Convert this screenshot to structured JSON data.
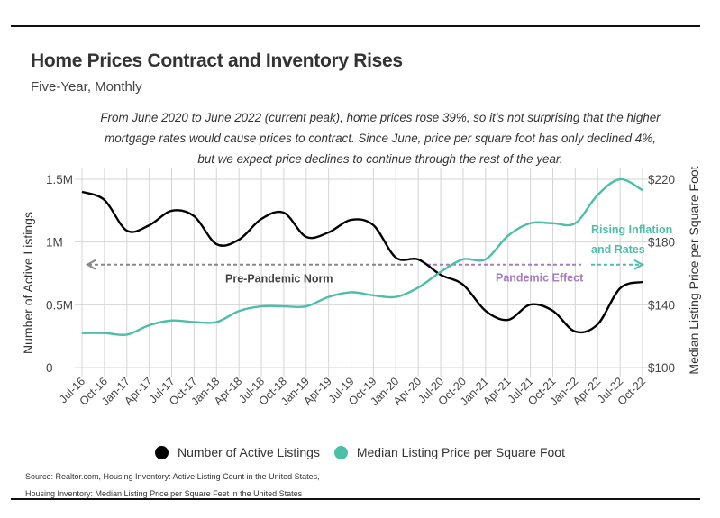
{
  "header": {
    "title": "Home Prices Contract and Inventory Rises",
    "subtitle": "Five-Year, Monthly",
    "description": "From June 2020 to June 2022 (current peak), home prices rose 39%, so it’s not surprising that the higher mortgage rates would cause prices to contract. Since June, price per square foot has only declined 4%, but we expect price declines to continue through the rest of the year."
  },
  "colors": {
    "listings": "#000000",
    "price": "#4dbfa8",
    "pre_pandemic": "#888888",
    "pandemic": "#a57dc1",
    "rising": "#4dbfa8",
    "grid": "#d4d4d4"
  },
  "chart_data": {
    "type": "line",
    "title": "Home Prices Contract and Inventory Rises",
    "subtitle": "Five-Year, Monthly",
    "xlabel": "",
    "ylabel_left": "Number of Active Listings",
    "ylabel_right": "Median Listing Price per Square Foot",
    "y_left": {
      "range": [
        0,
        1500000
      ],
      "ticks": [
        0,
        500000,
        1000000,
        1500000
      ],
      "tick_labels": [
        "0",
        "0.5M",
        "1M",
        "1.5M"
      ]
    },
    "y_right": {
      "range": [
        100,
        220
      ],
      "ticks": [
        100,
        140,
        180,
        220
      ],
      "tick_labels": [
        "$100",
        "$140",
        "$180",
        "$220"
      ]
    },
    "grid": true,
    "legend_position": "bottom",
    "x_tick_labels": [
      "Jul-16",
      "Oct-16",
      "Jan-17",
      "Apr-17",
      "Jul-17",
      "Oct-17",
      "Jan-18",
      "Apr-18",
      "Jul-18",
      "Oct-18",
      "Jan-19",
      "Apr-19",
      "Jul-19",
      "Oct-19",
      "Jan-20",
      "Apr-20",
      "Jul-20",
      "Oct-20",
      "Jan-21",
      "Apr-21",
      "Jul-21",
      "Oct-21",
      "Jan-22",
      "Apr-22",
      "Jul-22",
      "Oct-22"
    ],
    "x": [
      "Jul-16",
      "Oct-16",
      "Jan-17",
      "Apr-17",
      "Jul-17",
      "Oct-17",
      "Jan-18",
      "Apr-18",
      "Jul-18",
      "Oct-18",
      "Jan-19",
      "Apr-19",
      "Jul-19",
      "Oct-19",
      "Jan-20",
      "Apr-20",
      "Jul-20",
      "Oct-20",
      "Jan-21",
      "Apr-21",
      "Jul-21",
      "Oct-21",
      "Jan-22",
      "Apr-22",
      "Jul-22",
      "Oct-22"
    ],
    "series": [
      {
        "name": "Number of Active Listings",
        "axis": "left",
        "values": [
          1400000,
          1335000,
          1091000,
          1134000,
          1249000,
          1206000,
          983000,
          1019000,
          1184000,
          1234000,
          1041000,
          1077000,
          1177000,
          1134000,
          876000,
          861000,
          739000,
          660000,
          452000,
          380000,
          502000,
          452000,
          287000,
          345000,
          632000,
          682000
        ]
      },
      {
        "name": "Median Listing Price per Square Foot",
        "axis": "right",
        "values": [
          122,
          122,
          121,
          127,
          130,
          129,
          129,
          136,
          139,
          139,
          139,
          145,
          148,
          146,
          145,
          151,
          161,
          169,
          169,
          184,
          192,
          192,
          192,
          210,
          220,
          213
        ]
      }
    ],
    "annotations": [
      {
        "text": "Pre-Pandemic Norm",
        "from": "Jul-20",
        "to": "Jul-16",
        "direction": "left",
        "y_value_left": 820000
      },
      {
        "text": "Pandemic Effect",
        "from": "Jul-20",
        "to": "Mar-22",
        "y_value_left": 820000
      },
      {
        "text": "Rising Inflation and Rates",
        "from": "Apr-22",
        "to": "Oct-22",
        "direction": "right",
        "y_value_left": 820000
      }
    ]
  },
  "legend": [
    {
      "label": "Number of Active Listings",
      "color": "#000000"
    },
    {
      "label": "Median Listing Price per Square Foot",
      "color": "#4dbfa8"
    }
  ],
  "footer": {
    "source_line1": "Source:  Realtor.com, Housing Inventory: Active Listing Count in the United States,",
    "source_line2": "Housing Inventory: Median Listing Price per Square Feet in the United States"
  }
}
